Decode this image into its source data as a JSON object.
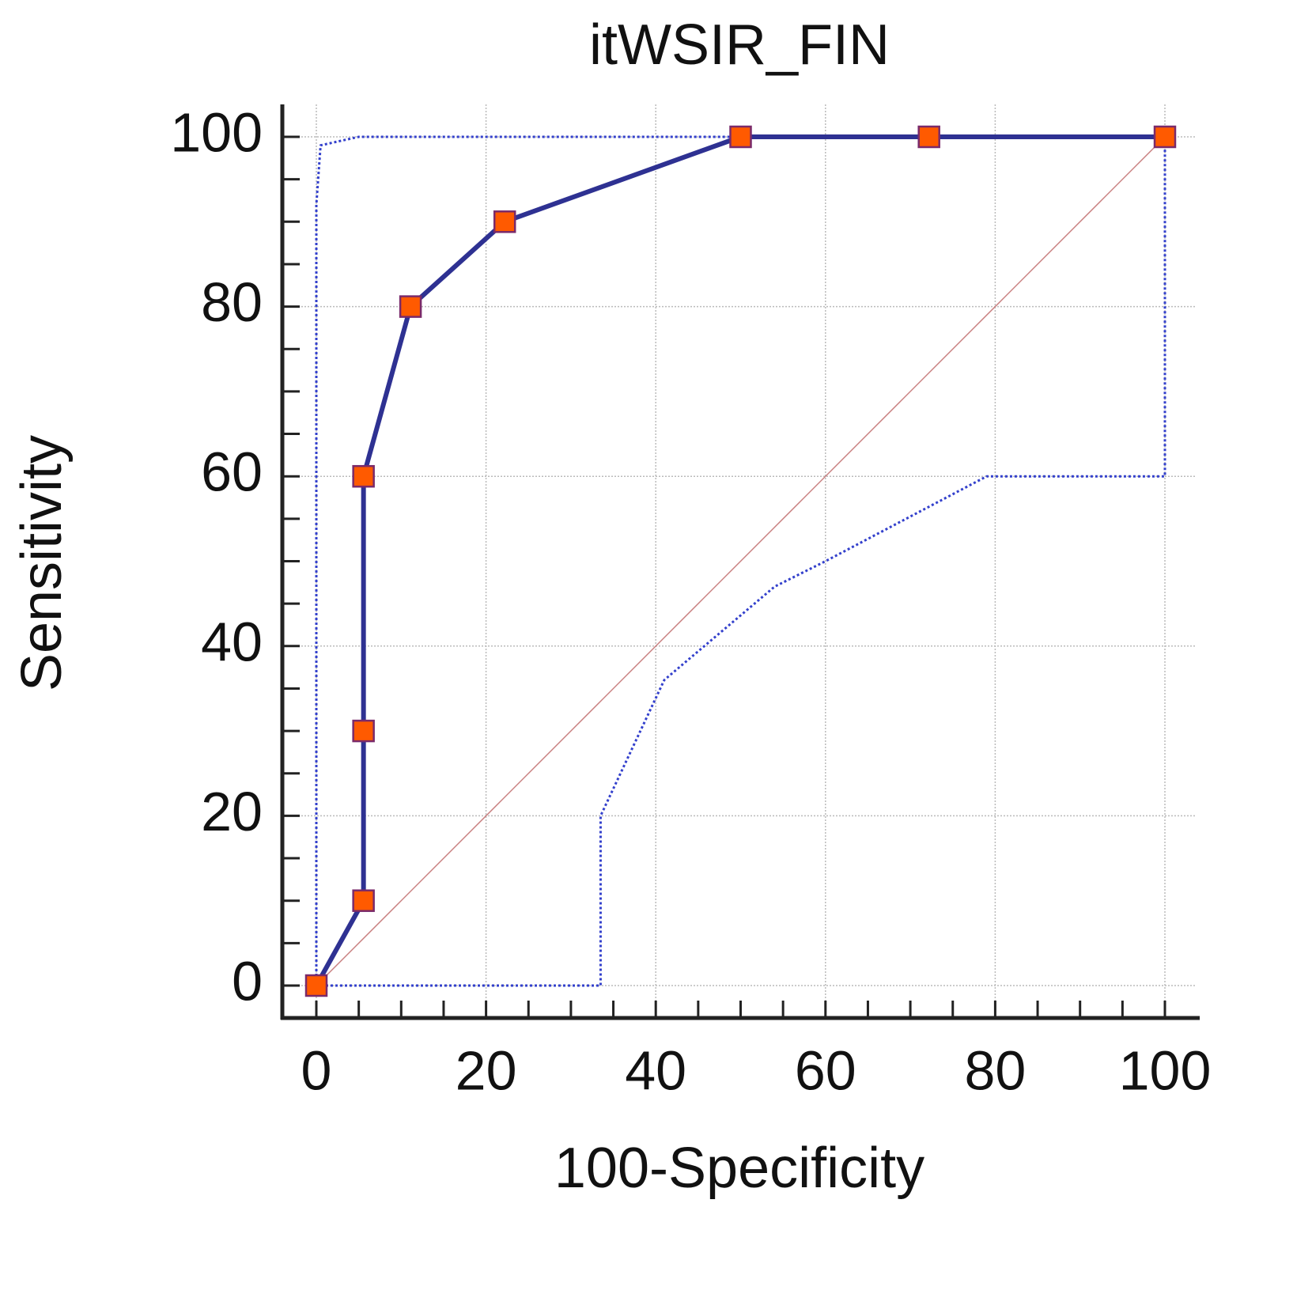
{
  "chart_data": {
    "type": "line",
    "title": "itWSIR_FIN",
    "xlabel": "100-Specificity",
    "ylabel": "Sensitivity",
    "xlim": [
      0,
      100
    ],
    "ylim": [
      0,
      100
    ],
    "xticks": [
      0,
      20,
      40,
      60,
      80,
      100
    ],
    "yticks": [
      0,
      20,
      40,
      60,
      80,
      100
    ],
    "xminorticks": [
      5,
      10,
      15,
      25,
      30,
      35,
      45,
      50,
      55,
      65,
      70,
      75,
      85,
      90,
      95
    ],
    "yminorticks": [
      5,
      10,
      15,
      25,
      30,
      35,
      45,
      50,
      55,
      65,
      70,
      75,
      85,
      90,
      95
    ],
    "grid": true,
    "series": [
      {
        "color": "#2e3192",
        "style": "solid",
        "markers": true,
        "marker_color": "#ff5a00",
        "x": [
          0,
          5.56,
          5.56,
          5.56,
          11.1,
          22.2,
          50,
          72.2,
          100
        ],
        "values": [
          0,
          10,
          30,
          60,
          80,
          90,
          100,
          100,
          100
        ]
      },
      {
        "color": "#3340cc",
        "style": "dotted",
        "markers": false,
        "x": [
          0,
          0,
          0.5,
          5,
          50
        ],
        "values": [
          0,
          92,
          99,
          100,
          100
        ]
      },
      {
        "color": "#3340cc",
        "style": "dotted",
        "markers": false,
        "x": [
          0,
          33.5,
          33.5,
          41,
          54,
          60,
          79,
          100,
          100
        ],
        "values": [
          0,
          0,
          20,
          36,
          47,
          50,
          60,
          60,
          100
        ]
      },
      {
        "color": "#c98080",
        "style": "thin",
        "markers": false,
        "x": [
          0,
          100
        ],
        "values": [
          0,
          100
        ]
      }
    ]
  }
}
